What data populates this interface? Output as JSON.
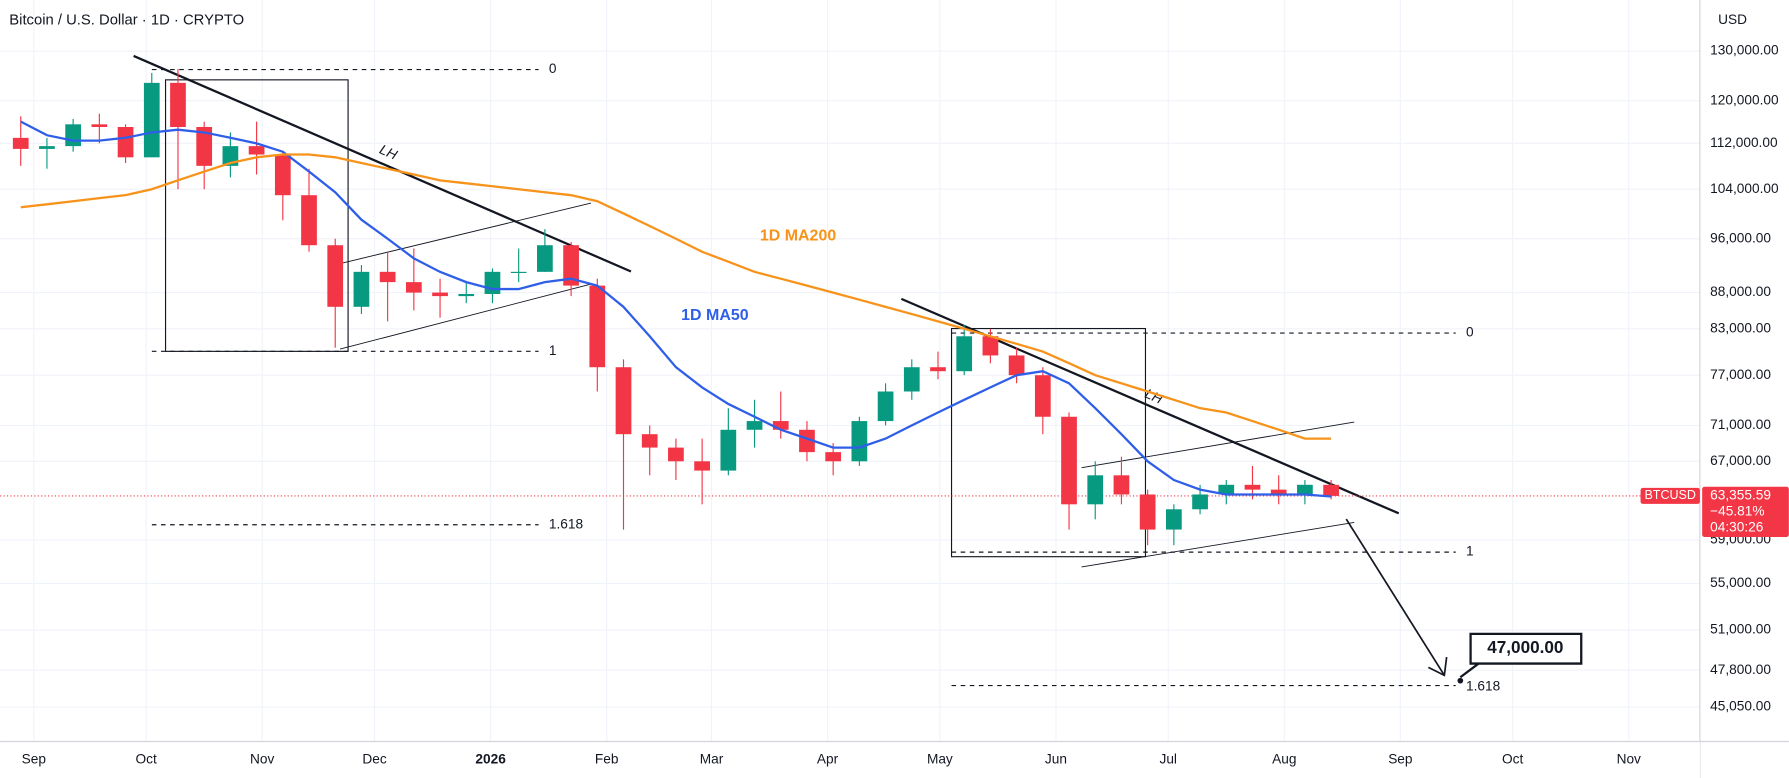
{
  "chart_data": {
    "type": "candlestick",
    "title": "Bitcoin / U.S. Dollar · 1D · CRYPTO",
    "currency": "USD",
    "log_scale": true,
    "grid": true,
    "up_color": "#089981",
    "down_color": "#f23645",
    "xlim": [
      "2025-08-23",
      "2026-11-20"
    ],
    "xticks": [
      {
        "value": "2025-09-01",
        "label": "Sep"
      },
      {
        "value": "2025-10-01",
        "label": "Oct"
      },
      {
        "value": "2025-11-01",
        "label": "Nov"
      },
      {
        "value": "2025-12-01",
        "label": "Dec"
      },
      {
        "value": "2026-01-01",
        "label": "2026"
      },
      {
        "value": "2026-02-01",
        "label": "Feb"
      },
      {
        "value": "2026-03-01",
        "label": "Mar"
      },
      {
        "value": "2026-04-01",
        "label": "Apr"
      },
      {
        "value": "2026-05-01",
        "label": "May"
      },
      {
        "value": "2026-06-01",
        "label": "Jun"
      },
      {
        "value": "2026-07-01",
        "label": "Jul"
      },
      {
        "value": "2026-08-01",
        "label": "Aug"
      },
      {
        "value": "2026-09-01",
        "label": "Sep"
      },
      {
        "value": "2026-10-01",
        "label": "Oct"
      },
      {
        "value": "2026-11-01",
        "label": "Nov"
      }
    ],
    "ylim": [
      42600,
      141200
    ],
    "yticks": [
      {
        "value": 130000,
        "label": "130,000.00"
      },
      {
        "value": 120000,
        "label": "120,000.00"
      },
      {
        "value": 112000,
        "label": "112,000.00"
      },
      {
        "value": 104000,
        "label": "104,000.00"
      },
      {
        "value": 96000,
        "label": "96,000.00"
      },
      {
        "value": 88000,
        "label": "88,000.00"
      },
      {
        "value": 83000,
        "label": "83,000.00"
      },
      {
        "value": 77000,
        "label": "77,000.00"
      },
      {
        "value": 71000,
        "label": "71,000.00"
      },
      {
        "value": 67000,
        "label": "67,000.00"
      },
      {
        "value": 59000,
        "label": "59,000.00"
      },
      {
        "value": 55000,
        "label": "55,000.00"
      },
      {
        "value": 51000,
        "label": "51,000.00"
      },
      {
        "value": 47800,
        "label": "47,800.00"
      },
      {
        "value": 45050,
        "label": "45,050.00"
      }
    ],
    "x": [
      "2025-08-25",
      "2025-09-01",
      "2025-09-08",
      "2025-09-15",
      "2025-09-22",
      "2025-09-29",
      "2025-10-06",
      "2025-10-13",
      "2025-10-20",
      "2025-10-27",
      "2025-11-03",
      "2025-11-10",
      "2025-11-17",
      "2025-11-24",
      "2025-12-01",
      "2025-12-08",
      "2025-12-15",
      "2025-12-22",
      "2025-12-29",
      "2026-01-05",
      "2026-01-12",
      "2026-01-19",
      "2026-01-26",
      "2026-02-02",
      "2026-02-09",
      "2026-02-16",
      "2026-02-23",
      "2026-03-02",
      "2026-03-09",
      "2026-03-16",
      "2026-03-23",
      "2026-03-30",
      "2026-04-06",
      "2026-04-13",
      "2026-04-20",
      "2026-04-27",
      "2026-05-04",
      "2026-05-11",
      "2026-05-18",
      "2026-05-25",
      "2026-06-01",
      "2026-06-08",
      "2026-06-15",
      "2026-06-22",
      "2026-06-29",
      "2026-07-06",
      "2026-07-13",
      "2026-07-20",
      "2026-07-27",
      "2026-08-03",
      "2026-08-10"
    ],
    "candles": {
      "open": [
        113000,
        111000,
        111500,
        115500,
        115000,
        109500,
        123500,
        115000,
        108000,
        111500,
        110000,
        103000,
        95000,
        86000,
        91000,
        89500,
        88000,
        87500,
        87800,
        91000,
        91000,
        95000,
        89000,
        78000,
        70000,
        68500,
        67000,
        66000,
        70500,
        71500,
        70500,
        68000,
        67000,
        71500,
        75000,
        78000,
        77500,
        82000,
        79500,
        77000,
        72000,
        62500,
        65500,
        63500,
        60000,
        62000,
        63500,
        64500,
        64000,
        63500,
        64500
      ],
      "high": [
        117000,
        113000,
        116500,
        117500,
        115500,
        125500,
        126300,
        116000,
        114000,
        116000,
        110500,
        107500,
        96000,
        92000,
        94000,
        94500,
        90000,
        89500,
        91500,
        94500,
        97500,
        95500,
        90000,
        79000,
        71000,
        69500,
        69500,
        73000,
        74000,
        75000,
        71500,
        69000,
        72000,
        76000,
        79000,
        80000,
        83500,
        83000,
        80500,
        78000,
        72500,
        67000,
        67500,
        64000,
        62500,
        64500,
        65000,
        66500,
        65500,
        65000,
        65000
      ],
      "low": [
        108000,
        107500,
        110500,
        112000,
        108500,
        109500,
        104000,
        104000,
        106000,
        106500,
        98900,
        94000,
        80500,
        85000,
        84000,
        85500,
        84500,
        86500,
        86500,
        89500,
        91000,
        87500,
        75000,
        60000,
        65500,
        65000,
        62500,
        65500,
        68500,
        69500,
        67000,
        65500,
        66500,
        71000,
        74000,
        76500,
        77000,
        78500,
        76000,
        70000,
        60000,
        61000,
        62500,
        58500,
        58500,
        61500,
        62500,
        63000,
        62500,
        62500,
        63000
      ],
      "close": [
        111000,
        111500,
        115500,
        115000,
        109500,
        123500,
        115000,
        108000,
        111500,
        110000,
        103000,
        95000,
        86000,
        91000,
        89500,
        88000,
        87500,
        87800,
        91000,
        91000,
        95000,
        89000,
        78000,
        70000,
        68500,
        67000,
        66000,
        70500,
        71500,
        70500,
        68000,
        67000,
        71500,
        75000,
        78000,
        77500,
        82000,
        79500,
        77000,
        72000,
        62500,
        65500,
        63500,
        60000,
        62000,
        63500,
        64500,
        64000,
        63500,
        64500,
        63355.59
      ]
    },
    "series": [
      {
        "name": "1D MA50",
        "color": "#2f5fe8",
        "values": [
          116000,
          113500,
          112500,
          112500,
          113000,
          114000,
          114500,
          114000,
          113000,
          112000,
          110500,
          107000,
          103500,
          99000,
          96000,
          93000,
          91000,
          89500,
          88500,
          88500,
          89500,
          90000,
          89000,
          86000,
          82000,
          78000,
          75500,
          73500,
          72000,
          70500,
          69500,
          68500,
          68500,
          69500,
          71000,
          72500,
          74000,
          75500,
          77000,
          77500,
          76000,
          73000,
          70000,
          67000,
          65000,
          64000,
          63500,
          63500,
          63500,
          63500,
          63300
        ]
      },
      {
        "name": "1D MA200",
        "color": "#f7931a",
        "values": [
          101000,
          101500,
          102000,
          102500,
          103000,
          104000,
          105500,
          107000,
          108500,
          109500,
          110000,
          110000,
          109500,
          108500,
          107500,
          106500,
          105500,
          105000,
          104500,
          104000,
          103500,
          103000,
          102000,
          100000,
          98000,
          96000,
          94000,
          92500,
          91000,
          90000,
          89000,
          88000,
          87000,
          86000,
          85000,
          84000,
          83000,
          82000,
          81000,
          80000,
          78500,
          77000,
          76000,
          75000,
          74000,
          73000,
          72500,
          71500,
          70500,
          69500,
          69500
        ]
      }
    ],
    "last_price": {
      "value": 63355.59,
      "label": "63,355.59"
    },
    "symbol": "BTCUSD",
    "change": "−45.81%",
    "countdown": "04:30:26",
    "target": {
      "value": 47000,
      "label": "47,000.00"
    },
    "annotations": {
      "lh": "LH",
      "fib": [
        "0",
        "1",
        "1.618"
      ]
    }
  }
}
